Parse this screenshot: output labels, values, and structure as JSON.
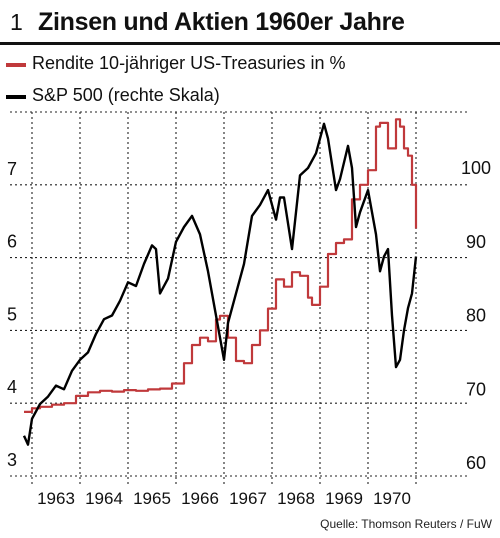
{
  "header": {
    "figure_number": "1",
    "title": "Zinsen und Aktien 1960er Jahre"
  },
  "legend": [
    {
      "label": "Rendite 10-jähriger US-Treasuries in %",
      "color": "#c0393b"
    },
    {
      "label": "S&P 500 (rechte Skala)",
      "color": "#000000"
    }
  ],
  "source": "Quelle: Thomson Reuters / FuW",
  "chart_data": {
    "type": "line",
    "x_axis": {
      "ticks": [
        "1963",
        "1964",
        "1965",
        "1966",
        "1967",
        "1968",
        "1969",
        "1970"
      ],
      "range": [
        "1962-07",
        "1970-10"
      ]
    },
    "y_left": {
      "ticks": [
        "3",
        "4",
        "5",
        "6",
        "7"
      ],
      "range": [
        3,
        8
      ]
    },
    "y_right": {
      "ticks": [
        "60",
        "70",
        "80",
        "90",
        "100"
      ],
      "range": [
        60,
        100
      ]
    },
    "grid": true,
    "legend_position": "top-left",
    "series": [
      {
        "name": "Rendite 10-jähriger US-Treasuries in %",
        "axis": "left",
        "color": "#c0393b",
        "points": [
          [
            "1962-08",
            3.88
          ],
          [
            "1962-10",
            3.93
          ],
          [
            "1962-12",
            3.95
          ],
          [
            "1963-03",
            3.98
          ],
          [
            "1963-06",
            4.0
          ],
          [
            "1963-09",
            4.1
          ],
          [
            "1963-12",
            4.15
          ],
          [
            "1964-03",
            4.17
          ],
          [
            "1964-06",
            4.16
          ],
          [
            "1964-09",
            4.18
          ],
          [
            "1964-12",
            4.17
          ],
          [
            "1965-03",
            4.19
          ],
          [
            "1965-06",
            4.2
          ],
          [
            "1965-09",
            4.27
          ],
          [
            "1965-12",
            4.55
          ],
          [
            "1966-02",
            4.8
          ],
          [
            "1966-04",
            4.9
          ],
          [
            "1966-06",
            4.85
          ],
          [
            "1966-08",
            5.15
          ],
          [
            "1966-09",
            5.2
          ],
          [
            "1966-11",
            4.9
          ],
          [
            "1967-01",
            4.58
          ],
          [
            "1967-03",
            4.55
          ],
          [
            "1967-05",
            4.8
          ],
          [
            "1967-07",
            5.0
          ],
          [
            "1967-09",
            5.3
          ],
          [
            "1967-11",
            5.7
          ],
          [
            "1968-01",
            5.6
          ],
          [
            "1968-03",
            5.8
          ],
          [
            "1968-05",
            5.75
          ],
          [
            "1968-07",
            5.45
          ],
          [
            "1968-08",
            5.35
          ],
          [
            "1968-10",
            5.6
          ],
          [
            "1968-12",
            6.05
          ],
          [
            "1969-02",
            6.2
          ],
          [
            "1969-04",
            6.25
          ],
          [
            "1969-06",
            6.8
          ],
          [
            "1969-08",
            7.0
          ],
          [
            "1969-10",
            7.2
          ],
          [
            "1969-12",
            7.8
          ],
          [
            "1970-01",
            7.85
          ],
          [
            "1970-03",
            7.5
          ],
          [
            "1970-05",
            7.9
          ],
          [
            "1970-06",
            7.8
          ],
          [
            "1970-07",
            7.5
          ],
          [
            "1970-08",
            7.4
          ],
          [
            "1970-09",
            7.0
          ],
          [
            "1970-10",
            6.4
          ]
        ]
      },
      {
        "name": "S&P 500 (rechte Skala)",
        "axis": "right",
        "color": "#000000",
        "points": [
          [
            "1962-08",
            63.7
          ],
          [
            "1962-09",
            62.5
          ],
          [
            "1962-10",
            66.0
          ],
          [
            "1962-12",
            68.0
          ],
          [
            "1963-02",
            69.0
          ],
          [
            "1963-04",
            70.5
          ],
          [
            "1963-06",
            70.0
          ],
          [
            "1963-08",
            72.5
          ],
          [
            "1963-10",
            74.0
          ],
          [
            "1963-12",
            75.0
          ],
          [
            "1964-02",
            77.5
          ],
          [
            "1964-04",
            79.5
          ],
          [
            "1964-06",
            80.0
          ],
          [
            "1964-08",
            82.0
          ],
          [
            "1964-10",
            84.5
          ],
          [
            "1964-12",
            84.0
          ],
          [
            "1965-02",
            87.0
          ],
          [
            "1965-04",
            89.5
          ],
          [
            "1965-05",
            89.0
          ],
          [
            "1965-06",
            83.0
          ],
          [
            "1965-08",
            85.0
          ],
          [
            "1965-10",
            90.0
          ],
          [
            "1965-12",
            92.0
          ],
          [
            "1966-02",
            93.5
          ],
          [
            "1966-04",
            91.0
          ],
          [
            "1966-06",
            86.0
          ],
          [
            "1966-08",
            80.0
          ],
          [
            "1966-10",
            74.0
          ],
          [
            "1966-11",
            79.0
          ],
          [
            "1967-01",
            83.0
          ],
          [
            "1967-03",
            87.0
          ],
          [
            "1967-05",
            93.5
          ],
          [
            "1967-07",
            95.0
          ],
          [
            "1967-09",
            97.0
          ],
          [
            "1967-11",
            93.0
          ],
          [
            "1967-12",
            96.0
          ],
          [
            "1968-01",
            96.0
          ],
          [
            "1968-03",
            89.0
          ],
          [
            "1968-05",
            99.0
          ],
          [
            "1968-07",
            100.0
          ],
          [
            "1968-09",
            102.0
          ],
          [
            "1968-11",
            106.0
          ],
          [
            "1968-12",
            104.0
          ],
          [
            "1969-02",
            97.0
          ],
          [
            "1969-03",
            98.5
          ],
          [
            "1969-05",
            103.0
          ],
          [
            "1969-06",
            100.0
          ],
          [
            "1969-07",
            92.0
          ],
          [
            "1969-08",
            94.0
          ],
          [
            "1969-10",
            97.0
          ],
          [
            "1969-12",
            91.0
          ],
          [
            "1970-01",
            86.0
          ],
          [
            "1970-02",
            88.0
          ],
          [
            "1970-03",
            89.0
          ],
          [
            "1970-04",
            80.0
          ],
          [
            "1970-05",
            73.0
          ],
          [
            "1970-06",
            74.0
          ],
          [
            "1970-07",
            78.0
          ],
          [
            "1970-08",
            81.0
          ],
          [
            "1970-09",
            83.0
          ],
          [
            "1970-10",
            88.0
          ]
        ]
      }
    ]
  }
}
